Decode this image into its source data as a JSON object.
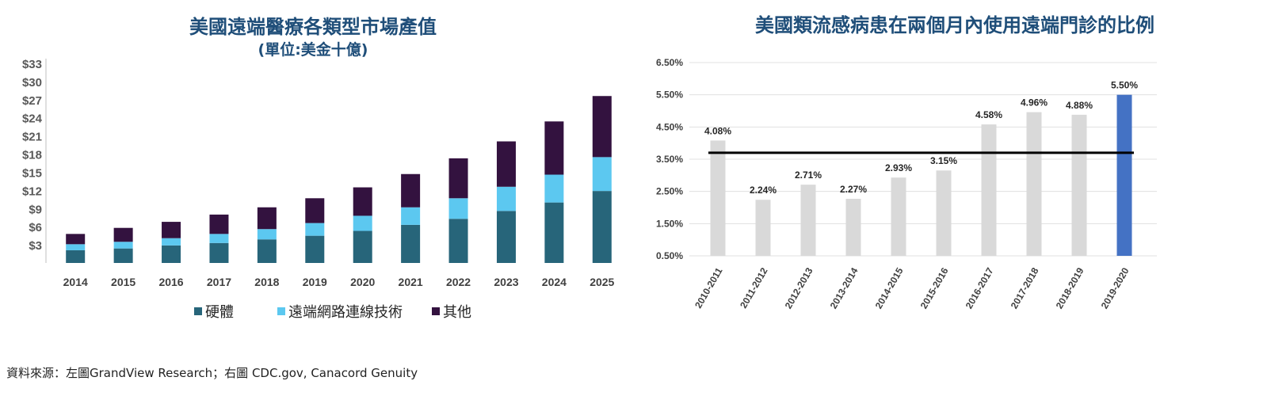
{
  "source_note": "資料來源：左圖GrandView Research；右圖 CDC.gov, Canacord Genuity",
  "chart_data": [
    {
      "type": "bar",
      "stacked": true,
      "title": "美國遠端醫療各類型市場產值",
      "subtitle": "(單位:美金十億)",
      "categories": [
        "2014",
        "2015",
        "2016",
        "2017",
        "2018",
        "2019",
        "2020",
        "2021",
        "2022",
        "2023",
        "2024",
        "2025"
      ],
      "series": [
        {
          "name": "硬體",
          "color": "#27657a",
          "values": [
            2.1,
            2.4,
            2.9,
            3.3,
            3.9,
            4.5,
            5.3,
            6.3,
            7.3,
            8.6,
            10.0,
            11.9
          ]
        },
        {
          "name": "遠端網路連線技術",
          "color": "#5cc8f0",
          "values": [
            1.0,
            1.1,
            1.2,
            1.5,
            1.7,
            2.1,
            2.5,
            2.9,
            3.4,
            4.0,
            4.6,
            5.6
          ]
        },
        {
          "name": "其他",
          "color": "#33123f",
          "values": [
            1.7,
            2.3,
            2.7,
            3.2,
            3.6,
            4.1,
            4.7,
            5.5,
            6.6,
            7.5,
            8.8,
            10.1
          ]
        }
      ],
      "yticks": [
        "$3",
        "$6",
        "$9",
        "$12",
        "$15",
        "$18",
        "$21",
        "$24",
        "$27",
        "$30",
        "$33"
      ],
      "ylim": [
        0,
        33
      ],
      "grid": false,
      "legend": "bottom"
    },
    {
      "type": "bar",
      "title": "美國類流感病患在兩個月內使用遠端門診的比例",
      "categories": [
        "2010-2011",
        "2011-2012",
        "2012-2013",
        "2013-2014",
        "2014-2015",
        "2015-2016",
        "2016-2017",
        "2017-2018",
        "2018-2019",
        "2019-2020"
      ],
      "values": [
        4.08,
        2.24,
        2.71,
        2.27,
        2.93,
        3.15,
        4.58,
        4.96,
        4.88,
        5.5
      ],
      "value_labels": [
        "4.08%",
        "2.24%",
        "2.71%",
        "2.27%",
        "2.93%",
        "3.15%",
        "4.58%",
        "4.96%",
        "4.88%",
        "5.50%"
      ],
      "bar_color": "#d9d9d9",
      "highlight_color": "#4472c4",
      "highlight_index": 9,
      "reference_line": 3.7,
      "yticks": [
        "0.50%",
        "1.50%",
        "2.50%",
        "3.50%",
        "4.50%",
        "5.50%",
        "6.50%"
      ],
      "ylim": [
        0.5,
        6.5
      ],
      "grid": true,
      "legend": "none"
    }
  ]
}
